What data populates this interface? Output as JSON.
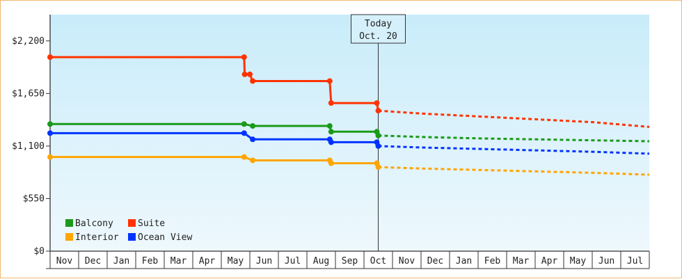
{
  "chart_data": {
    "type": "line",
    "title": "",
    "xlabel": "",
    "ylabel": "",
    "ylim": [
      0,
      2475
    ],
    "yticks": [
      {
        "value": 0,
        "label": "$0"
      },
      {
        "value": 550,
        "label": "$550"
      },
      {
        "value": 1100,
        "label": "$1,100"
      },
      {
        "value": 1650,
        "label": "$1,650"
      },
      {
        "value": 2200,
        "label": "$2,200"
      }
    ],
    "months": [
      "Nov",
      "Dec",
      "Jan",
      "Feb",
      "Mar",
      "Apr",
      "May",
      "Jun",
      "Jul",
      "Aug",
      "Sep",
      "Oct",
      "Nov",
      "Dec",
      "Jan",
      "Feb",
      "Mar",
      "Apr",
      "May",
      "Jun",
      "Jul"
    ],
    "today": {
      "line1": "Today",
      "line2": "Oct. 20",
      "month_index": 11.5
    },
    "background": {
      "top": "#c9ecfa",
      "bottom": "#eef8fd"
    },
    "legend_placement": "bottom-left",
    "series": [
      {
        "name": "Balcony",
        "color": "#1a9a1a",
        "historical": [
          [
            0,
            1330
          ],
          [
            6.8,
            1330
          ],
          [
            7.1,
            1310
          ],
          [
            9.8,
            1310
          ],
          [
            9.85,
            1250
          ],
          [
            11.45,
            1250
          ],
          [
            11.5,
            1210
          ]
        ],
        "markers": [
          [
            0,
            1330
          ],
          [
            6.8,
            1330
          ],
          [
            7.1,
            1310
          ],
          [
            9.8,
            1310
          ],
          [
            9.85,
            1250
          ],
          [
            11.45,
            1250
          ],
          [
            11.5,
            1210
          ]
        ],
        "forecast": [
          [
            11.5,
            1210
          ],
          [
            13,
            1195
          ],
          [
            15,
            1180
          ],
          [
            17,
            1170
          ],
          [
            19,
            1160
          ],
          [
            21,
            1150
          ]
        ]
      },
      {
        "name": "Suite",
        "color": "#ff3300",
        "historical": [
          [
            0,
            2030
          ],
          [
            6.8,
            2030
          ],
          [
            6.82,
            1850
          ],
          [
            7.0,
            1850
          ],
          [
            7.1,
            1780
          ],
          [
            9.8,
            1780
          ],
          [
            9.85,
            1550
          ],
          [
            11.45,
            1550
          ],
          [
            11.5,
            1470
          ]
        ],
        "markers": [
          [
            0,
            2030
          ],
          [
            6.8,
            2030
          ],
          [
            6.82,
            1850
          ],
          [
            7.0,
            1850
          ],
          [
            7.1,
            1780
          ],
          [
            9.8,
            1780
          ],
          [
            9.85,
            1550
          ],
          [
            11.45,
            1550
          ],
          [
            11.5,
            1470
          ]
        ],
        "forecast": [
          [
            11.5,
            1470
          ],
          [
            13,
            1440
          ],
          [
            15,
            1410
          ],
          [
            17,
            1380
          ],
          [
            19,
            1350
          ],
          [
            21,
            1300
          ]
        ]
      },
      {
        "name": "Interior",
        "color": "#ffa500",
        "historical": [
          [
            0,
            985
          ],
          [
            6.8,
            985
          ],
          [
            7.1,
            950
          ],
          [
            9.8,
            950
          ],
          [
            9.85,
            920
          ],
          [
            11.45,
            920
          ],
          [
            11.5,
            880
          ]
        ],
        "markers": [
          [
            0,
            985
          ],
          [
            6.8,
            985
          ],
          [
            7.1,
            950
          ],
          [
            9.8,
            950
          ],
          [
            9.85,
            920
          ],
          [
            11.45,
            920
          ],
          [
            11.5,
            880
          ]
        ],
        "forecast": [
          [
            11.5,
            880
          ],
          [
            13,
            865
          ],
          [
            15,
            850
          ],
          [
            17,
            835
          ],
          [
            19,
            820
          ],
          [
            21,
            800
          ]
        ]
      },
      {
        "name": "Ocean View",
        "color": "#0033ff",
        "historical": [
          [
            0,
            1235
          ],
          [
            6.8,
            1235
          ],
          [
            7.1,
            1170
          ],
          [
            9.8,
            1170
          ],
          [
            9.85,
            1140
          ],
          [
            11.45,
            1140
          ],
          [
            11.5,
            1100
          ]
        ],
        "markers": [
          [
            0,
            1235
          ],
          [
            6.8,
            1235
          ],
          [
            7.1,
            1170
          ],
          [
            9.8,
            1170
          ],
          [
            9.85,
            1140
          ],
          [
            11.45,
            1140
          ],
          [
            11.5,
            1100
          ]
        ],
        "forecast": [
          [
            11.5,
            1100
          ],
          [
            13,
            1085
          ],
          [
            15,
            1070
          ],
          [
            17,
            1055
          ],
          [
            19,
            1040
          ],
          [
            21,
            1020
          ]
        ]
      }
    ],
    "legend": [
      {
        "name": "Balcony",
        "color": "#1a9a1a"
      },
      {
        "name": "Suite",
        "color": "#ff3300"
      },
      {
        "name": "Interior",
        "color": "#ffa500"
      },
      {
        "name": "Ocean View",
        "color": "#0033ff"
      }
    ]
  }
}
